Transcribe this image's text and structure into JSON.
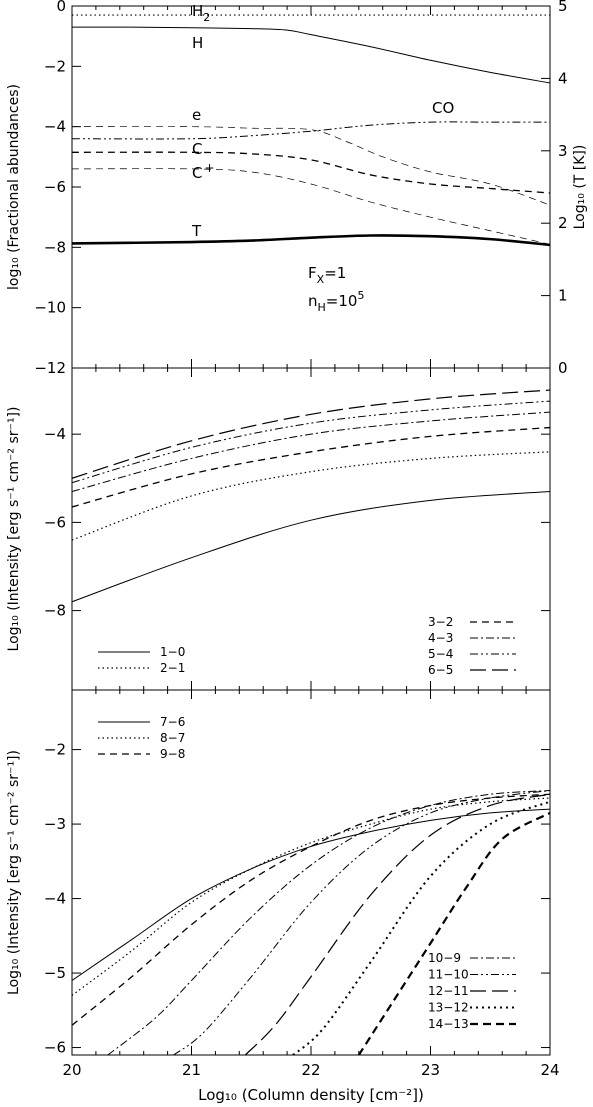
{
  "x_axis": {
    "label": "Log₁₀ (Column density [cm⁻²])",
    "ticks": [
      "20",
      "21",
      "22",
      "23",
      "24"
    ]
  },
  "chart_data": [
    {
      "type": "line",
      "ylabel_left": "log₁₀ (Fractional abundances)",
      "ylabel_right": "Log₁₀ (T [K])",
      "xlim": [
        20,
        24
      ],
      "ylim": [
        -12,
        0
      ],
      "ylim_right": [
        0,
        5
      ],
      "yticks": [
        "0",
        "−2",
        "−4",
        "−6",
        "−8",
        "−10",
        "−12"
      ],
      "yticks_right": [
        "0",
        "1",
        "2",
        "3",
        "4",
        "5"
      ],
      "annotations": {
        "fx": "F",
        "fx_sub": "X",
        "fx_val": "=1",
        "nh": "n",
        "nh_sub": "H",
        "nh_val": "=10",
        "nh_exp": "5"
      },
      "series": [
        {
          "name": "H₂",
          "label": "H",
          "label_sub": "2",
          "style": "dotted",
          "x": [
            20,
            21,
            22,
            23,
            24
          ],
          "y": [
            -0.3,
            -0.3,
            -0.3,
            -0.3,
            -0.3
          ]
        },
        {
          "name": "H",
          "label": "H",
          "style": "solid",
          "x": [
            20,
            20.5,
            21,
            21.5,
            21.8,
            22,
            22.5,
            23,
            23.5,
            24
          ],
          "y": [
            -0.7,
            -0.7,
            -0.72,
            -0.75,
            -0.8,
            -0.95,
            -1.35,
            -1.8,
            -2.2,
            -2.55
          ]
        },
        {
          "name": "e",
          "label": "e",
          "style": "dashed-thin",
          "x": [
            20,
            21,
            21.5,
            22,
            22.3,
            22.6,
            23,
            23.5,
            24
          ],
          "y": [
            -4.0,
            -4.0,
            -4.05,
            -4.1,
            -4.5,
            -5.0,
            -5.5,
            -5.9,
            -6.6
          ]
        },
        {
          "name": "CO",
          "label": "CO",
          "style": "dash-dot-dot",
          "x": [
            20,
            21,
            21.5,
            22,
            22.5,
            23,
            23.5,
            24
          ],
          "y": [
            -4.4,
            -4.4,
            -4.3,
            -4.15,
            -3.95,
            -3.85,
            -3.85,
            -3.85
          ]
        },
        {
          "name": "C",
          "label": "C",
          "style": "dashed",
          "x": [
            20,
            21,
            21.5,
            22,
            22.5,
            23,
            23.5,
            24
          ],
          "y": [
            -4.85,
            -4.85,
            -4.9,
            -5.1,
            -5.6,
            -5.9,
            -6.05,
            -6.2
          ]
        },
        {
          "name": "C⁺",
          "label": "C",
          "label_sup": "+",
          "style": "dashed-thin",
          "x": [
            20,
            21,
            21.5,
            22,
            22.5,
            23,
            23.5,
            24
          ],
          "y": [
            -5.4,
            -5.4,
            -5.5,
            -5.9,
            -6.5,
            -7.0,
            -7.45,
            -7.9
          ]
        },
        {
          "name": "T",
          "label": "T",
          "style": "thick",
          "axis": "right",
          "x": [
            20,
            21,
            21.5,
            22,
            22.5,
            23,
            23.5,
            24
          ],
          "y": [
            1.72,
            1.74,
            1.76,
            1.8,
            1.83,
            1.82,
            1.78,
            1.7
          ]
        }
      ]
    },
    {
      "type": "line",
      "ylabel": "Log₁₀ (Intensity [erg s⁻¹ cm⁻² sr⁻¹])",
      "xlim": [
        20,
        24
      ],
      "ylim": [
        -9.8,
        -2.5
      ],
      "yticks": [
        "−4",
        "−6",
        "−8"
      ],
      "series": [
        {
          "name": "1−0",
          "style": "solid",
          "x": [
            20,
            21,
            22,
            23,
            24
          ],
          "y": [
            -7.8,
            -6.8,
            -5.95,
            -5.5,
            -5.3
          ]
        },
        {
          "name": "2−1",
          "style": "dotted",
          "x": [
            20,
            21,
            22,
            23,
            24
          ],
          "y": [
            -6.4,
            -5.4,
            -4.85,
            -4.55,
            -4.4
          ]
        },
        {
          "name": "3−2",
          "style": "dashed",
          "x": [
            20,
            21,
            22,
            23,
            24
          ],
          "y": [
            -5.65,
            -4.9,
            -4.4,
            -4.05,
            -3.85
          ]
        },
        {
          "name": "4−3",
          "style": "dash-dot",
          "x": [
            20,
            21,
            22,
            23,
            24
          ],
          "y": [
            -5.3,
            -4.55,
            -4.0,
            -3.7,
            -3.5
          ]
        },
        {
          "name": "5−4",
          "style": "dash-dot-dot",
          "x": [
            20,
            21,
            22,
            23,
            24
          ],
          "y": [
            -5.1,
            -4.3,
            -3.75,
            -3.45,
            -3.25
          ]
        },
        {
          "name": "6−5",
          "style": "long-dash",
          "x": [
            20,
            21,
            22,
            23,
            24
          ],
          "y": [
            -5.0,
            -4.15,
            -3.55,
            -3.2,
            -3.0
          ]
        }
      ]
    },
    {
      "type": "line",
      "ylabel": "Log₁₀ (Intensity [erg s⁻¹ cm⁻² sr⁻¹])",
      "xlim": [
        20,
        24
      ],
      "ylim": [
        -6.1,
        -1.2
      ],
      "yticks": [
        "−2",
        "−3",
        "−4",
        "−5",
        "−6"
      ],
      "series": [
        {
          "name": "7−6",
          "style": "solid",
          "x": [
            20,
            20.5,
            21,
            21.5,
            22,
            22.5,
            23,
            23.5,
            24
          ],
          "y": [
            -5.1,
            -4.55,
            -4.0,
            -3.6,
            -3.3,
            -3.1,
            -2.95,
            -2.85,
            -2.8
          ]
        },
        {
          "name": "8−7",
          "style": "dotted",
          "x": [
            20,
            20.5,
            21,
            21.5,
            22,
            22.5,
            23,
            23.5,
            24
          ],
          "y": [
            -5.3,
            -4.7,
            -4.05,
            -3.6,
            -3.25,
            -3.0,
            -2.8,
            -2.7,
            -2.65
          ]
        },
        {
          "name": "9−8",
          "style": "dashed",
          "x": [
            20,
            20.5,
            21,
            21.5,
            22,
            22.5,
            23,
            23.5,
            24
          ],
          "y": [
            -5.7,
            -5.05,
            -4.35,
            -3.75,
            -3.3,
            -2.95,
            -2.75,
            -2.65,
            -2.6
          ]
        },
        {
          "name": "10−9",
          "style": "dash-dot",
          "x": [
            20.3,
            20.7,
            21,
            21.5,
            22,
            22.5,
            23,
            23.5,
            24
          ],
          "y": [
            -6.1,
            -5.6,
            -5.1,
            -4.25,
            -3.55,
            -3.05,
            -2.75,
            -2.6,
            -2.55
          ]
        },
        {
          "name": "11−10",
          "style": "dash-dot-dot",
          "x": [
            20.85,
            21.1,
            21.5,
            22,
            22.5,
            23,
            23.5,
            24
          ],
          "y": [
            -6.1,
            -5.8,
            -5.05,
            -4.05,
            -3.3,
            -2.85,
            -2.65,
            -2.55
          ]
        },
        {
          "name": "12−11",
          "style": "long-dash",
          "x": [
            21.45,
            21.7,
            22,
            22.5,
            23,
            23.5,
            24
          ],
          "y": [
            -6.1,
            -5.7,
            -5.05,
            -3.95,
            -3.15,
            -2.75,
            -2.6
          ]
        },
        {
          "name": "13−12",
          "style": "dotted-thick",
          "x": [
            21.85,
            22.1,
            22.5,
            23,
            23.5,
            24
          ],
          "y": [
            -6.1,
            -5.75,
            -4.85,
            -3.7,
            -3.0,
            -2.7
          ]
        },
        {
          "name": "14−13",
          "style": "dashed-thick",
          "x": [
            22.4,
            22.7,
            23,
            23.3,
            23.6,
            24
          ],
          "y": [
            -6.1,
            -5.35,
            -4.6,
            -3.85,
            -3.2,
            -2.85
          ]
        }
      ]
    }
  ]
}
